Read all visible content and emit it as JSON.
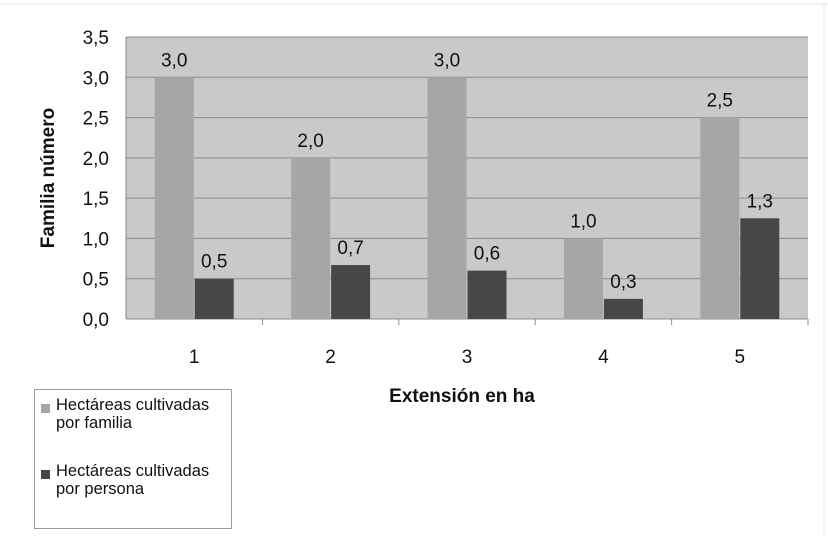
{
  "chart_data": {
    "type": "bar",
    "categories": [
      "1",
      "2",
      "3",
      "4",
      "5"
    ],
    "series": [
      {
        "name": "Hectáreas cultivadas por familia",
        "values": [
          3.0,
          2.0,
          3.0,
          1.0,
          2.5
        ],
        "labels": [
          "3,0",
          "2,0",
          "3,0",
          "1,0",
          "2,5"
        ],
        "color": "#a6a6a6"
      },
      {
        "name": "Hectáreas cultivadas por persona",
        "values": [
          0.5,
          0.67,
          0.6,
          0.25,
          1.25
        ],
        "labels": [
          "0,5",
          "0,7",
          "0,6",
          "0,3",
          "1,3"
        ],
        "color": "#474747"
      }
    ],
    "yticks": [
      "0,0",
      "0,5",
      "1,0",
      "1,5",
      "2,0",
      "2,5",
      "3,0",
      "3,5"
    ],
    "ylim": [
      0,
      3.5
    ],
    "xlabel": "Extensión en ha",
    "ylabel": "Familia número",
    "plot_background": "#c9c9c9",
    "grid": true,
    "legend_position": "bottom-left"
  }
}
